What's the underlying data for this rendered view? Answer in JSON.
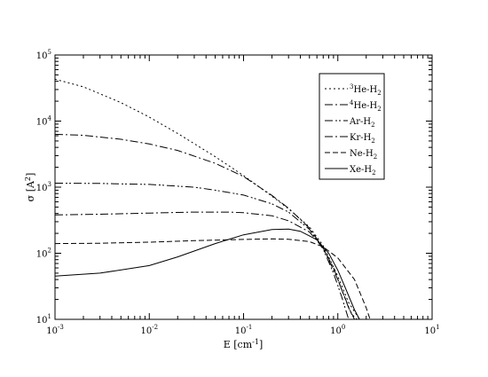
{
  "chart_data": {
    "type": "line",
    "title": "",
    "xlabel": {
      "base": "E [cm",
      "sup": "-1",
      "tail": "]"
    },
    "ylabel": {
      "base": "σ [A",
      "sup": "2",
      "tail": "]"
    },
    "xscale": "log",
    "yscale": "log",
    "xlim": [
      0.001,
      10
    ],
    "ylim": [
      10,
      100000
    ],
    "grid": false,
    "legend_position": "top-right",
    "x_tick_labels": [
      {
        "base": "10",
        "sup": "-3"
      },
      {
        "base": "10",
        "sup": "-2"
      },
      {
        "base": "10",
        "sup": "-1"
      },
      {
        "base": "10",
        "sup": "0"
      },
      {
        "base": "10",
        "sup": "1"
      }
    ],
    "y_tick_labels": [
      {
        "base": "10",
        "sup": "1"
      },
      {
        "base": "10",
        "sup": "2"
      },
      {
        "base": "10",
        "sup": "3"
      },
      {
        "base": "10",
        "sup": "4"
      },
      {
        "base": "10",
        "sup": "5"
      }
    ],
    "series": [
      {
        "name": "3He-H2",
        "legend": {
          "pre_sup": "3",
          "base": "He-H",
          "sub": "2"
        },
        "dash": "2,3",
        "points": [
          [
            0.001,
            43000
          ],
          [
            0.002,
            33000
          ],
          [
            0.005,
            19000
          ],
          [
            0.01,
            11500
          ],
          [
            0.02,
            6500
          ],
          [
            0.05,
            2900
          ],
          [
            0.1,
            1500
          ],
          [
            0.2,
            730
          ],
          [
            0.3,
            470
          ],
          [
            0.5,
            250
          ],
          [
            0.7,
            130
          ],
          [
            1,
            45
          ],
          [
            1.3,
            18
          ],
          [
            1.7,
            10
          ]
        ]
      },
      {
        "name": "4He-H2",
        "legend": {
          "pre_sup": "4",
          "base": "He-H",
          "sub": "2"
        },
        "dash": "9,3,2,3",
        "points": [
          [
            0.001,
            6300
          ],
          [
            0.002,
            6100
          ],
          [
            0.005,
            5300
          ],
          [
            0.01,
            4500
          ],
          [
            0.02,
            3600
          ],
          [
            0.05,
            2300
          ],
          [
            0.1,
            1450
          ],
          [
            0.2,
            750
          ],
          [
            0.3,
            480
          ],
          [
            0.5,
            240
          ],
          [
            0.7,
            120
          ],
          [
            1,
            40
          ],
          [
            1.3,
            15
          ],
          [
            1.5,
            10
          ]
        ]
      },
      {
        "name": "Ar-H2",
        "legend": {
          "base": "Ar-H",
          "sub": "2"
        },
        "dash": "9,3,2,2,2,3",
        "points": [
          [
            0.001,
            1150
          ],
          [
            0.003,
            1140
          ],
          [
            0.01,
            1100
          ],
          [
            0.03,
            1000
          ],
          [
            0.05,
            900
          ],
          [
            0.1,
            760
          ],
          [
            0.2,
            560
          ],
          [
            0.3,
            420
          ],
          [
            0.5,
            230
          ],
          [
            0.7,
            115
          ],
          [
            0.9,
            50
          ],
          [
            1.1,
            22
          ],
          [
            1.3,
            10
          ]
        ]
      },
      {
        "name": "Kr-H2",
        "legend": {
          "base": "Kr-H",
          "sub": "2"
        },
        "dash": "9,3,2,3",
        "points": [
          [
            0.001,
            380
          ],
          [
            0.003,
            390
          ],
          [
            0.01,
            405
          ],
          [
            0.03,
            420
          ],
          [
            0.07,
            420
          ],
          [
            0.1,
            410
          ],
          [
            0.2,
            370
          ],
          [
            0.3,
            310
          ],
          [
            0.5,
            210
          ],
          [
            0.7,
            120
          ],
          [
            0.9,
            60
          ],
          [
            1.1,
            28
          ],
          [
            1.4,
            12
          ],
          [
            1.6,
            10
          ]
        ]
      },
      {
        "name": "Ne-H2",
        "legend": {
          "base": "Ne-H",
          "sub": "2"
        },
        "dash": "6,3",
        "points": [
          [
            0.001,
            140
          ],
          [
            0.003,
            142
          ],
          [
            0.01,
            147
          ],
          [
            0.03,
            155
          ],
          [
            0.1,
            162
          ],
          [
            0.2,
            165
          ],
          [
            0.3,
            163
          ],
          [
            0.5,
            150
          ],
          [
            0.7,
            125
          ],
          [
            1,
            85
          ],
          [
            1.5,
            40
          ],
          [
            2,
            15
          ],
          [
            2.2,
            10
          ]
        ]
      },
      {
        "name": "Xe-H2",
        "legend": {
          "base": "Xe-H",
          "sub": "2"
        },
        "dash": "",
        "points": [
          [
            0.001,
            45
          ],
          [
            0.003,
            50
          ],
          [
            0.01,
            65
          ],
          [
            0.02,
            88
          ],
          [
            0.05,
            140
          ],
          [
            0.1,
            190
          ],
          [
            0.2,
            228
          ],
          [
            0.3,
            232
          ],
          [
            0.4,
            215
          ],
          [
            0.6,
            160
          ],
          [
            0.8,
            100
          ],
          [
            1,
            55
          ],
          [
            1.2,
            30
          ],
          [
            1.5,
            14
          ],
          [
            1.7,
            10
          ]
        ]
      }
    ]
  }
}
